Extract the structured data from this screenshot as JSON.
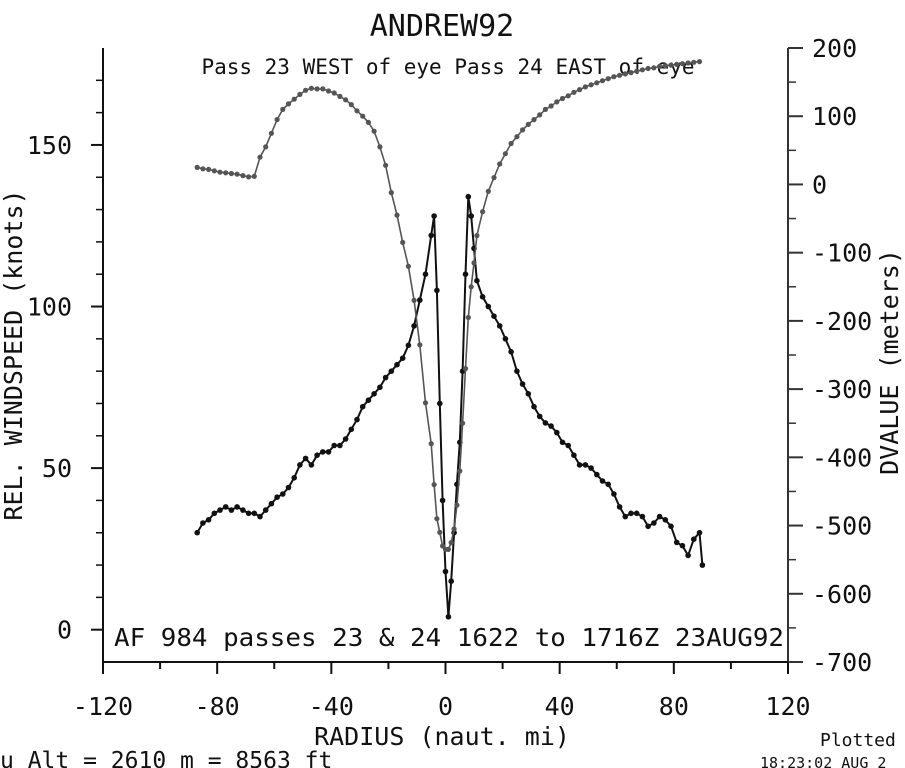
{
  "chart_data": {
    "type": "line",
    "title": "ANDREW92",
    "subtitle": "Pass 23 WEST of eye Pass 24 EAST of eye",
    "annotation": "AF 984  passes 23 & 24   1622 to 1716Z 23AUG92",
    "footer_left": "u  Alt = 2610 m  =  8563 ft",
    "footer_right_top": "Plotted d",
    "footer_right_bottom": "18:23:02 AUG 2",
    "xlabel": "RADIUS (naut. mi)",
    "ylabel": "REL. WINDSPEED (knots)",
    "y2label": "DVALUE (meters)",
    "xlim": [
      -120,
      120
    ],
    "ylim": [
      -10,
      180
    ],
    "y2lim": [
      -700,
      200
    ],
    "x_ticks": [
      "-120",
      "-80",
      "-40",
      "0",
      "40",
      "80",
      "120"
    ],
    "y_ticks": [
      "0",
      "50",
      "100",
      "150"
    ],
    "y2_ticks": [
      "-700",
      "-600",
      "-500",
      "-400",
      "-300",
      "-200",
      "-100",
      "0",
      "100",
      "200"
    ],
    "colors": {
      "windspeed": "#111111",
      "dvalue": "#555555"
    },
    "series": [
      {
        "axis": "left",
        "points": [
          [
            -87,
            30
          ],
          [
            -85,
            33
          ],
          [
            -83,
            34
          ],
          [
            -81,
            36
          ],
          [
            -79,
            37
          ],
          [
            -77,
            38
          ],
          [
            -75,
            37
          ],
          [
            -73,
            38
          ],
          [
            -71,
            37
          ],
          [
            -69,
            36
          ],
          [
            -67,
            36
          ],
          [
            -65,
            35
          ],
          [
            -63,
            37
          ],
          [
            -61,
            39
          ],
          [
            -59,
            41
          ],
          [
            -57,
            42
          ],
          [
            -55,
            44
          ],
          [
            -53,
            47
          ],
          [
            -51,
            51
          ],
          [
            -49,
            53
          ],
          [
            -47,
            51
          ],
          [
            -45,
            54
          ],
          [
            -43,
            55
          ],
          [
            -41,
            55
          ],
          [
            -39,
            57
          ],
          [
            -37,
            57
          ],
          [
            -35,
            59
          ],
          [
            -33,
            62
          ],
          [
            -31,
            65
          ],
          [
            -29,
            69
          ],
          [
            -27,
            71
          ],
          [
            -25,
            73
          ],
          [
            -23,
            75
          ],
          [
            -21,
            78
          ],
          [
            -19,
            80
          ],
          [
            -17,
            82
          ],
          [
            -15,
            84
          ],
          [
            -13,
            88
          ],
          [
            -11,
            94
          ],
          [
            -9,
            102
          ],
          [
            -7,
            110
          ],
          [
            -5,
            122
          ],
          [
            -4,
            128
          ],
          [
            -3,
            105
          ],
          [
            -2,
            70
          ],
          [
            -1,
            40
          ],
          [
            0,
            18
          ],
          [
            1,
            4
          ],
          [
            2,
            15
          ],
          [
            3,
            30
          ],
          [
            4,
            45
          ],
          [
            5,
            58
          ],
          [
            6,
            80
          ],
          [
            7,
            110
          ],
          [
            8,
            134
          ],
          [
            9,
            128
          ],
          [
            10,
            118
          ],
          [
            11,
            108
          ],
          [
            13,
            103
          ],
          [
            15,
            100
          ],
          [
            17,
            97
          ],
          [
            19,
            94
          ],
          [
            21,
            90
          ],
          [
            23,
            86
          ],
          [
            25,
            80
          ],
          [
            27,
            76
          ],
          [
            29,
            73
          ],
          [
            31,
            69
          ],
          [
            33,
            66
          ],
          [
            35,
            64
          ],
          [
            37,
            63
          ],
          [
            39,
            61
          ],
          [
            41,
            58
          ],
          [
            43,
            57
          ],
          [
            45,
            54
          ],
          [
            47,
            51
          ],
          [
            49,
            51
          ],
          [
            51,
            50
          ],
          [
            53,
            48
          ],
          [
            55,
            46
          ],
          [
            57,
            45
          ],
          [
            59,
            42
          ],
          [
            61,
            38
          ],
          [
            63,
            35
          ],
          [
            65,
            36
          ],
          [
            67,
            36
          ],
          [
            69,
            35
          ],
          [
            71,
            32
          ],
          [
            73,
            33
          ],
          [
            75,
            35
          ],
          [
            77,
            34
          ],
          [
            79,
            32
          ],
          [
            81,
            27
          ],
          [
            83,
            26
          ],
          [
            85,
            23
          ],
          [
            87,
            28
          ],
          [
            89,
            30
          ],
          [
            90,
            20
          ]
        ]
      },
      {
        "axis": "right",
        "points": [
          [
            -87,
            25
          ],
          [
            -85,
            23
          ],
          [
            -83,
            22
          ],
          [
            -81,
            20
          ],
          [
            -79,
            18
          ],
          [
            -77,
            17
          ],
          [
            -75,
            16
          ],
          [
            -73,
            15
          ],
          [
            -71,
            13
          ],
          [
            -69,
            11
          ],
          [
            -67,
            12
          ],
          [
            -65,
            40
          ],
          [
            -63,
            55
          ],
          [
            -61,
            75
          ],
          [
            -59,
            95
          ],
          [
            -57,
            110
          ],
          [
            -55,
            118
          ],
          [
            -53,
            125
          ],
          [
            -51,
            132
          ],
          [
            -49,
            138
          ],
          [
            -47,
            141
          ],
          [
            -45,
            140
          ],
          [
            -43,
            140
          ],
          [
            -41,
            137
          ],
          [
            -39,
            134
          ],
          [
            -37,
            129
          ],
          [
            -35,
            124
          ],
          [
            -33,
            117
          ],
          [
            -31,
            108
          ],
          [
            -29,
            100
          ],
          [
            -27,
            91
          ],
          [
            -25,
            78
          ],
          [
            -23,
            55
          ],
          [
            -21,
            28
          ],
          [
            -19,
            -12
          ],
          [
            -17,
            -45
          ],
          [
            -15,
            -85
          ],
          [
            -13,
            -120
          ],
          [
            -11,
            -170
          ],
          [
            -9,
            -235
          ],
          [
            -7,
            -320
          ],
          [
            -5,
            -380
          ],
          [
            -4,
            -440
          ],
          [
            -3,
            -490
          ],
          [
            -2,
            -510
          ],
          [
            -1,
            -530
          ],
          [
            0,
            -535
          ],
          [
            1,
            -535
          ],
          [
            2,
            -525
          ],
          [
            3,
            -505
          ],
          [
            4,
            -470
          ],
          [
            5,
            -420
          ],
          [
            6,
            -350
          ],
          [
            7,
            -270
          ],
          [
            8,
            -195
          ],
          [
            9,
            -150
          ],
          [
            10,
            -115
          ],
          [
            11,
            -75
          ],
          [
            13,
            -40
          ],
          [
            15,
            -10
          ],
          [
            17,
            10
          ],
          [
            19,
            30
          ],
          [
            21,
            45
          ],
          [
            23,
            60
          ],
          [
            25,
            70
          ],
          [
            27,
            80
          ],
          [
            29,
            88
          ],
          [
            31,
            95
          ],
          [
            33,
            102
          ],
          [
            35,
            110
          ],
          [
            37,
            115
          ],
          [
            39,
            121
          ],
          [
            41,
            126
          ],
          [
            43,
            130
          ],
          [
            45,
            135
          ],
          [
            47,
            139
          ],
          [
            49,
            143
          ],
          [
            51,
            146
          ],
          [
            53,
            149
          ],
          [
            55,
            152
          ],
          [
            57,
            155
          ],
          [
            59,
            158
          ],
          [
            61,
            160
          ],
          [
            63,
            162
          ],
          [
            65,
            164
          ],
          [
            67,
            166
          ],
          [
            69,
            168
          ],
          [
            71,
            170
          ],
          [
            73,
            171
          ],
          [
            75,
            173
          ],
          [
            77,
            174
          ],
          [
            79,
            175
          ],
          [
            81,
            176
          ],
          [
            83,
            177
          ],
          [
            85,
            178
          ],
          [
            87,
            179
          ],
          [
            89,
            180
          ]
        ]
      }
    ]
  }
}
